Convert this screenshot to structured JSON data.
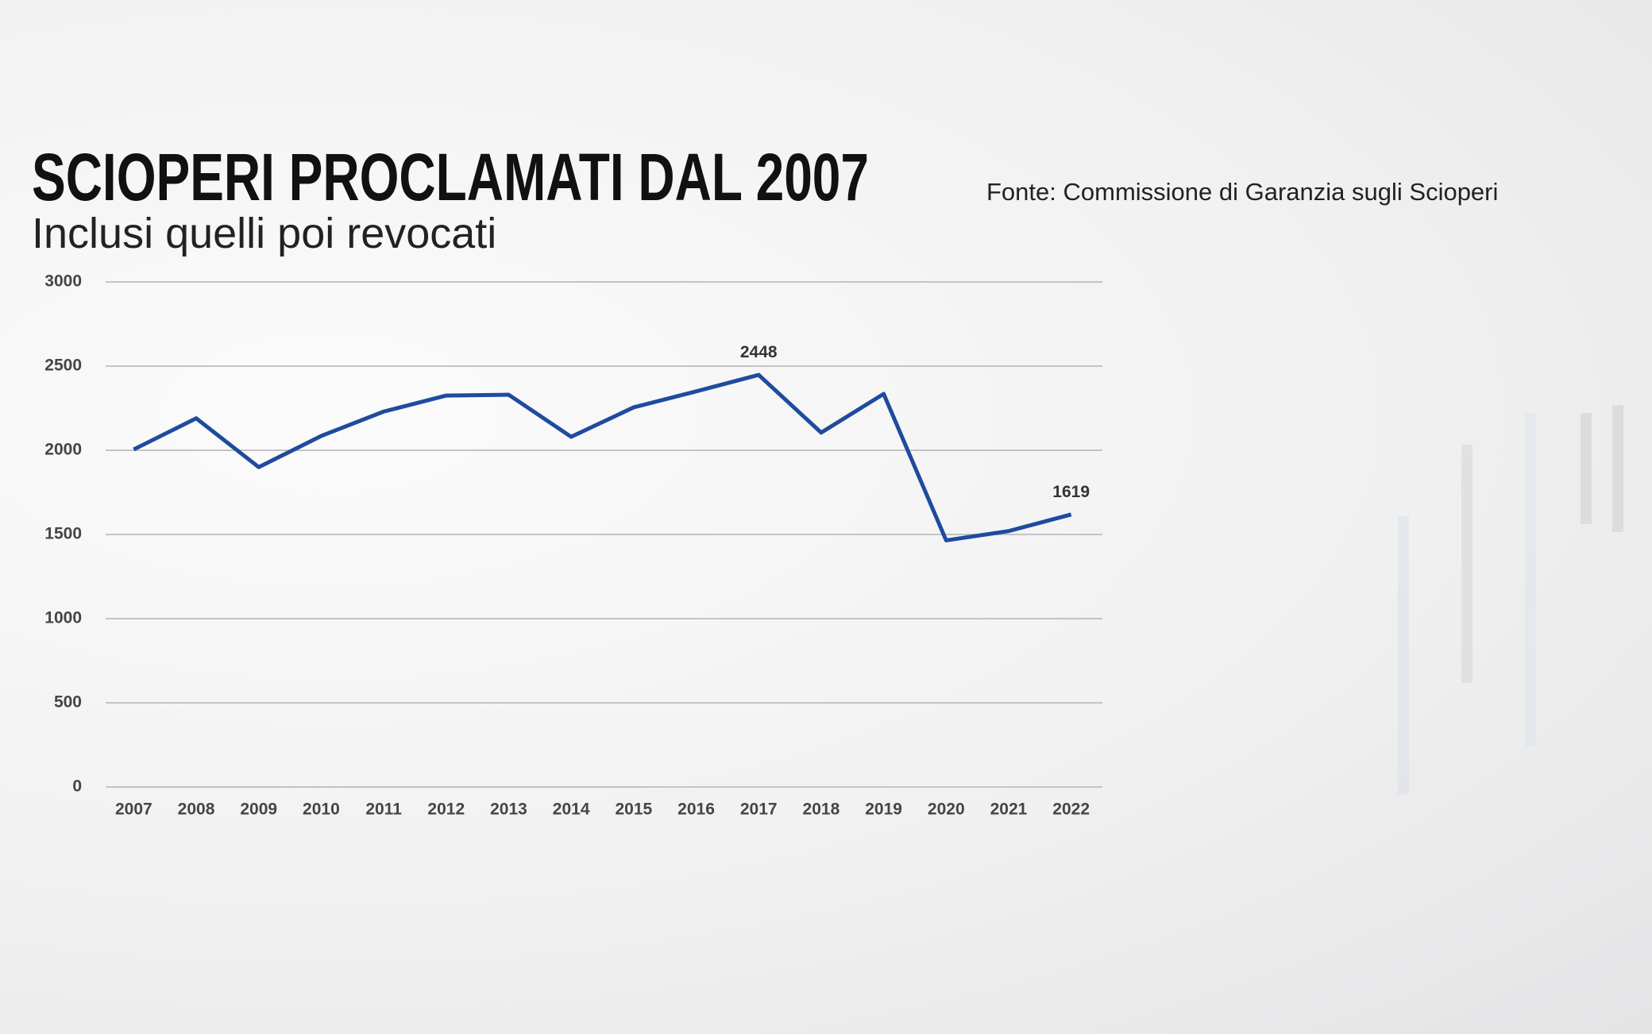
{
  "chart_data": {
    "type": "line",
    "title": "SCIOPERI PROCLAMATI DAL 2007",
    "subtitle": "Inclusi quelli poi revocati",
    "source": "Fonte: Commissione di Garanzia sugli Scioperi",
    "categories": [
      "2007",
      "2008",
      "2009",
      "2010",
      "2011",
      "2012",
      "2013",
      "2014",
      "2015",
      "2016",
      "2017",
      "2018",
      "2019",
      "2020",
      "2021",
      "2022"
    ],
    "values": [
      2005,
      2190,
      1900,
      2085,
      2230,
      2325,
      2330,
      2080,
      2255,
      2350,
      2448,
      2105,
      2335,
      1465,
      1520,
      1619
    ],
    "value_labels": [
      null,
      null,
      null,
      null,
      null,
      null,
      null,
      null,
      null,
      null,
      "2448",
      null,
      null,
      null,
      null,
      "1619"
    ],
    "color": "#1f4b9e",
    "ylim": [
      0,
      3000
    ],
    "yticks": [
      0,
      500,
      1000,
      1500,
      2000,
      2500,
      3000
    ],
    "grid": true
  }
}
